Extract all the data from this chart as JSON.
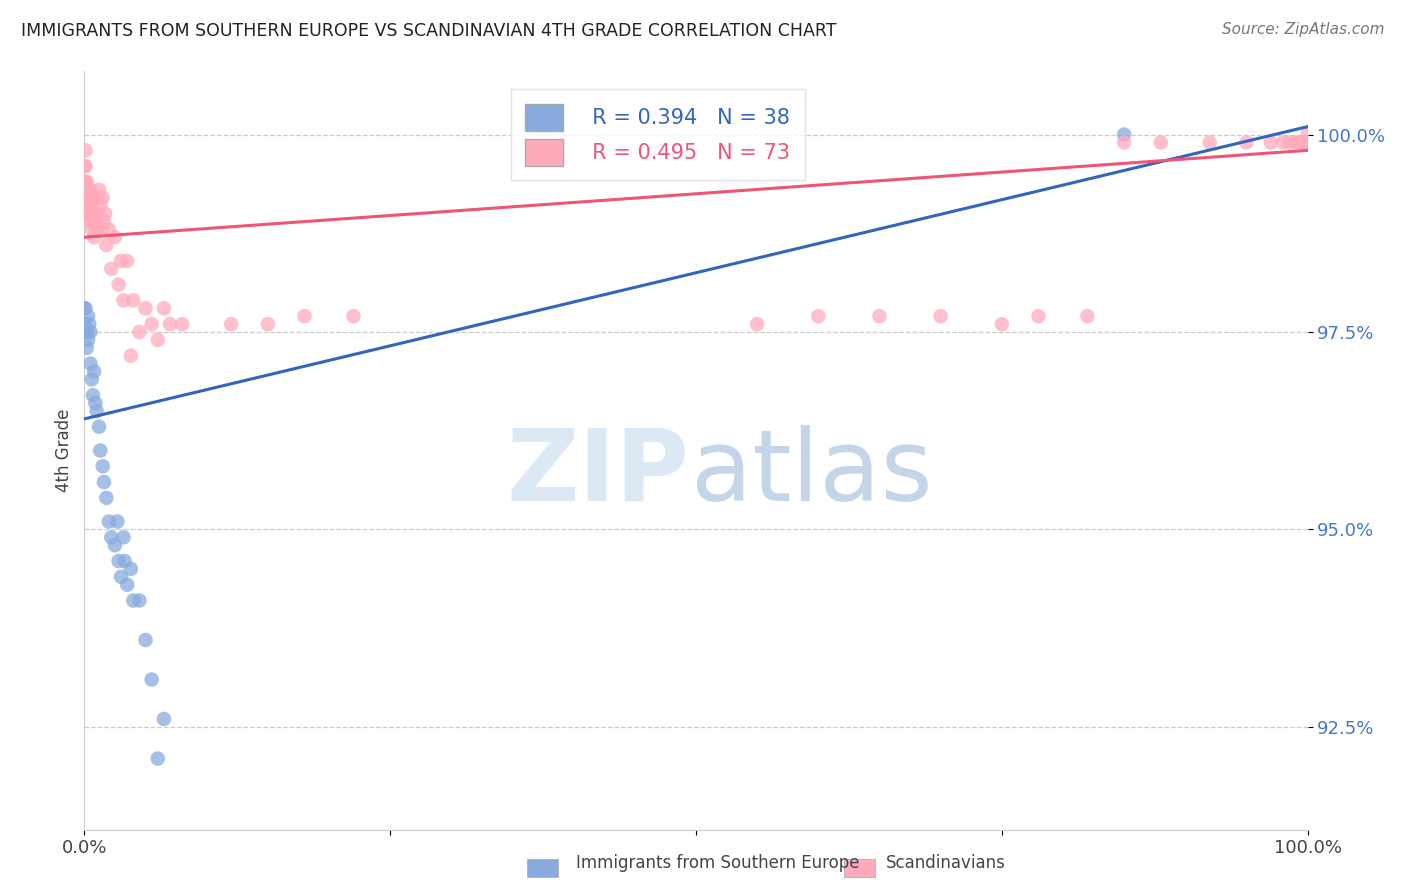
{
  "title": "IMMIGRANTS FROM SOUTHERN EUROPE VS SCANDINAVIAN 4TH GRADE CORRELATION CHART",
  "source": "Source: ZipAtlas.com",
  "ylabel": "4th Grade",
  "yaxis_labels": [
    "100.0%",
    "97.5%",
    "95.0%",
    "92.5%"
  ],
  "yaxis_values": [
    1.0,
    0.975,
    0.95,
    0.925
  ],
  "xmin": 0.0,
  "xmax": 1.0,
  "ymin": 0.912,
  "ymax": 1.008,
  "blue_label": "Immigrants from Southern Europe",
  "pink_label": "Scandinavians",
  "blue_R": "R = 0.394",
  "blue_N": "N = 38",
  "pink_R": "R = 0.495",
  "pink_N": "N = 73",
  "blue_color": "#88aadd",
  "pink_color": "#ffaabb",
  "blue_line_color": "#3366bb",
  "pink_line_color": "#ee5577",
  "blue_line_y_start": 0.964,
  "blue_line_y_end": 1.001,
  "pink_line_y_start": 0.987,
  "pink_line_y_end": 0.998,
  "blue_points_x": [
    0.0,
    0.0,
    0.001,
    0.001,
    0.002,
    0.002,
    0.003,
    0.003,
    0.004,
    0.005,
    0.005,
    0.006,
    0.007,
    0.008,
    0.009,
    0.01,
    0.012,
    0.013,
    0.015,
    0.016,
    0.018,
    0.02,
    0.022,
    0.025,
    0.027,
    0.028,
    0.03,
    0.032,
    0.033,
    0.035,
    0.038,
    0.04,
    0.045,
    0.05,
    0.055,
    0.06,
    0.065,
    0.85
  ],
  "blue_points_y": [
    0.978,
    0.976,
    0.978,
    0.975,
    0.975,
    0.973,
    0.977,
    0.974,
    0.976,
    0.975,
    0.971,
    0.969,
    0.967,
    0.97,
    0.966,
    0.965,
    0.963,
    0.96,
    0.958,
    0.956,
    0.954,
    0.951,
    0.949,
    0.948,
    0.951,
    0.946,
    0.944,
    0.949,
    0.946,
    0.943,
    0.945,
    0.941,
    0.941,
    0.936,
    0.931,
    0.921,
    0.926,
    1.0
  ],
  "pink_points_x": [
    0.0,
    0.0,
    0.0,
    0.0,
    0.001,
    0.001,
    0.001,
    0.001,
    0.002,
    0.002,
    0.003,
    0.003,
    0.004,
    0.004,
    0.005,
    0.005,
    0.006,
    0.006,
    0.007,
    0.007,
    0.008,
    0.008,
    0.009,
    0.01,
    0.01,
    0.011,
    0.012,
    0.013,
    0.014,
    0.015,
    0.016,
    0.017,
    0.018,
    0.02,
    0.022,
    0.025,
    0.028,
    0.03,
    0.032,
    0.035,
    0.038,
    0.04,
    0.045,
    0.05,
    0.055,
    0.06,
    0.065,
    0.07,
    0.08,
    0.12,
    0.15,
    0.18,
    0.22,
    0.55,
    0.6,
    0.65,
    0.7,
    0.75,
    0.78,
    0.82,
    0.85,
    0.88,
    0.92,
    0.95,
    0.97,
    0.98,
    0.985,
    0.99,
    0.993,
    0.996,
    0.998,
    0.999,
    1.0
  ],
  "pink_points_y": [
    0.996,
    0.994,
    0.992,
    0.99,
    0.998,
    0.996,
    0.994,
    0.992,
    0.994,
    0.99,
    0.993,
    0.991,
    0.992,
    0.989,
    0.993,
    0.991,
    0.99,
    0.988,
    0.992,
    0.989,
    0.99,
    0.987,
    0.989,
    0.992,
    0.988,
    0.99,
    0.993,
    0.991,
    0.988,
    0.992,
    0.989,
    0.99,
    0.986,
    0.988,
    0.983,
    0.987,
    0.981,
    0.984,
    0.979,
    0.984,
    0.972,
    0.979,
    0.975,
    0.978,
    0.976,
    0.974,
    0.978,
    0.976,
    0.976,
    0.976,
    0.976,
    0.977,
    0.977,
    0.976,
    0.977,
    0.977,
    0.977,
    0.976,
    0.977,
    0.977,
    0.999,
    0.999,
    0.999,
    0.999,
    0.999,
    0.999,
    0.999,
    0.999,
    0.999,
    0.999,
    0.999,
    0.999,
    1.0
  ]
}
